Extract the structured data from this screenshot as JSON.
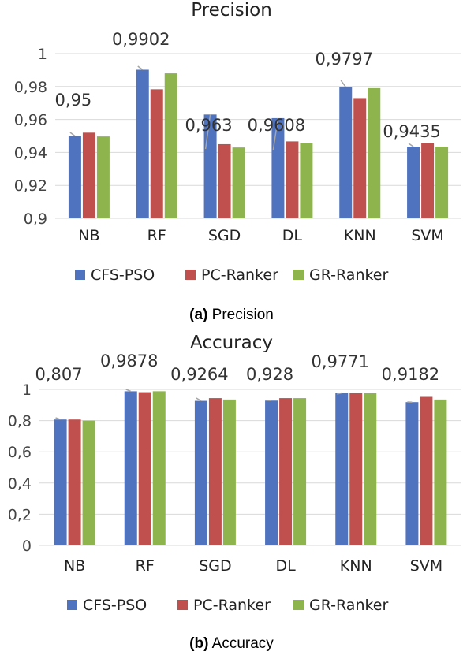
{
  "colors": {
    "series": [
      "#4f73be",
      "#c0504d",
      "#8db44d"
    ],
    "highlight": "#e8453c",
    "grid": "#d9d9d9",
    "leader": "#a6a6a6"
  },
  "chart_data": [
    {
      "type": "bar",
      "title": "Precision",
      "caption_letter": "(a)",
      "caption_text": "Precision",
      "categories": [
        "NB",
        "RF",
        "SGD",
        "DL",
        "KNN",
        "SVM"
      ],
      "series": [
        {
          "name": "CFS-PSO",
          "values": [
            0.95,
            0.9902,
            0.963,
            0.9608,
            0.9797,
            0.9435
          ]
        },
        {
          "name": "PC-Ranker",
          "values": [
            0.952,
            0.9783,
            0.945,
            0.9467,
            0.973,
            0.9457
          ]
        },
        {
          "name": "GR-Ranker",
          "values": [
            0.9497,
            0.988,
            0.943,
            0.9455,
            0.979,
            0.9435
          ]
        }
      ],
      "data_labels": [
        "0,95",
        "0,9902",
        "0,963",
        "0,9608",
        "0,9797",
        "0,9435"
      ],
      "highlight_index": 1,
      "ylim": [
        0.9,
        1.0
      ],
      "yticks": [
        0.9,
        0.92,
        0.94,
        0.96,
        0.98,
        1.0
      ],
      "ytick_labels": [
        "0,9",
        "0,92",
        "0,94",
        "0,96",
        "0,98",
        "1"
      ],
      "grid": true,
      "legend": "bottom"
    },
    {
      "type": "bar",
      "title": "Accuracy",
      "caption_letter": "(b)",
      "caption_text": "Accuracy",
      "categories": [
        "NB",
        "RF",
        "SGD",
        "DL",
        "KNN",
        "SVM"
      ],
      "series": [
        {
          "name": "CFS-PSO",
          "values": [
            0.807,
            0.9878,
            0.9264,
            0.928,
            0.9771,
            0.9182
          ]
        },
        {
          "name": "PC-Ranker",
          "values": [
            0.807,
            0.982,
            0.944,
            0.944,
            0.975,
            0.952
          ]
        },
        {
          "name": "GR-Ranker",
          "values": [
            0.8,
            0.988,
            0.935,
            0.944,
            0.975,
            0.935
          ]
        }
      ],
      "data_labels": [
        "0,807",
        "0,9878",
        "0,9264",
        "0,928",
        "0,9771",
        "0,9182"
      ],
      "highlight_index": 1,
      "ylim": [
        0,
        1.0
      ],
      "yticks": [
        0,
        0.2,
        0.4,
        0.6,
        0.8,
        1.0
      ],
      "ytick_labels": [
        "0",
        "0,2",
        "0,4",
        "0,6",
        "0,8",
        "1"
      ],
      "grid": true,
      "legend": "bottom"
    }
  ]
}
